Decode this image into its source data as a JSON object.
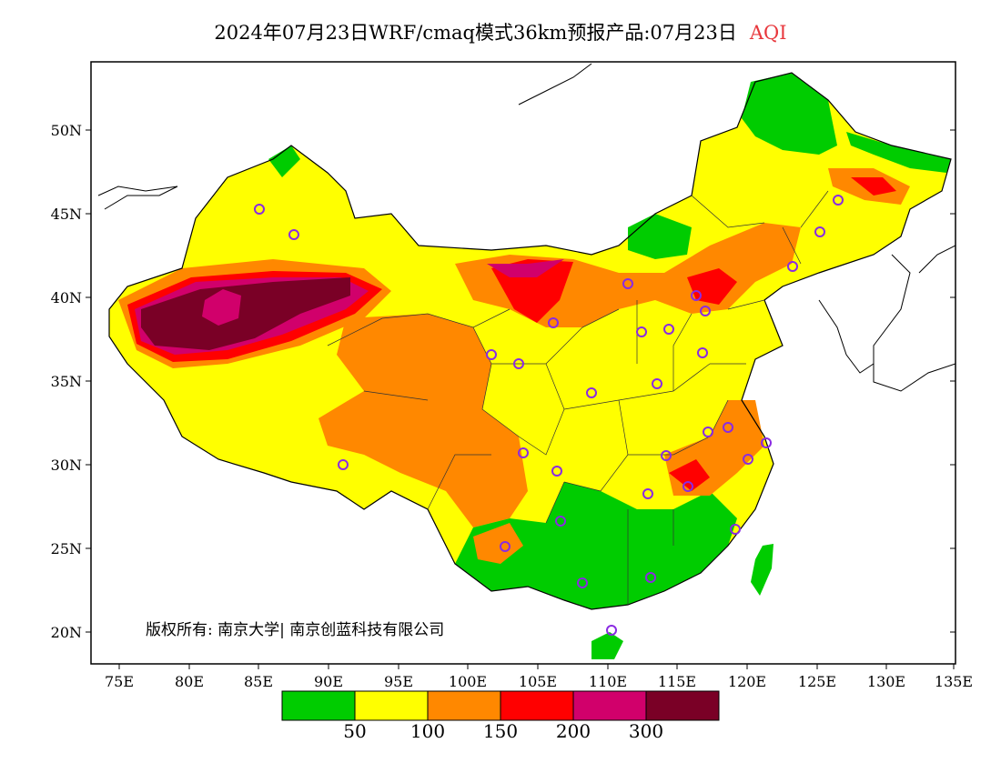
{
  "header": {
    "title": "2024年07月23日WRF/cmaq模式36km预报产品:07月23日",
    "variable": "AQI"
  },
  "map": {
    "lat_ticks": [
      "50N",
      "45N",
      "40N",
      "35N",
      "30N",
      "25N",
      "20N"
    ],
    "lon_ticks": [
      "75E",
      "80E",
      "85E",
      "90E",
      "95E",
      "100E",
      "105E",
      "110E",
      "115E",
      "120E",
      "125E",
      "130E",
      "135E"
    ],
    "copyright": "版权所有: 南京大学| 南京创蓝科技有限公司"
  },
  "legend": {
    "colors": [
      "#00cc00",
      "#ffff00",
      "#ff8800",
      "#ff0000",
      "#d1006b",
      "#7a0026"
    ],
    "labels": [
      "50",
      "100",
      "150",
      "200",
      "300"
    ]
  }
}
